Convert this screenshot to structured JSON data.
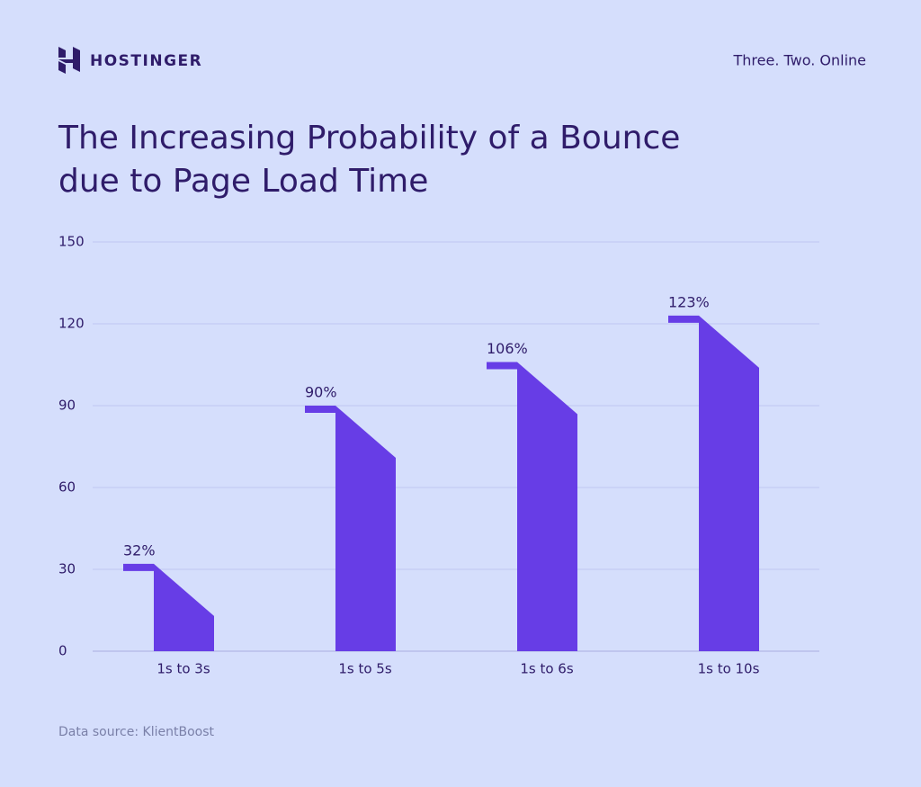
{
  "header": {
    "brand": "HOSTINGER",
    "tagline": "Three. Two. Online"
  },
  "chart_data": {
    "type": "bar",
    "title": "The Increasing Probability of a Bounce due to Page Load Time",
    "categories": [
      "1s to 3s",
      "1s to 5s",
      "1s to 6s",
      "1s to 10s"
    ],
    "values": [
      32,
      90,
      106,
      123
    ],
    "value_labels": [
      "32%",
      "90%",
      "106%",
      "123%"
    ],
    "color": "#673de6",
    "ylim": [
      0,
      150
    ],
    "yticks": [
      0,
      30,
      60,
      90,
      120,
      150
    ],
    "grid": true,
    "source": "Data source: KlientBoost"
  }
}
